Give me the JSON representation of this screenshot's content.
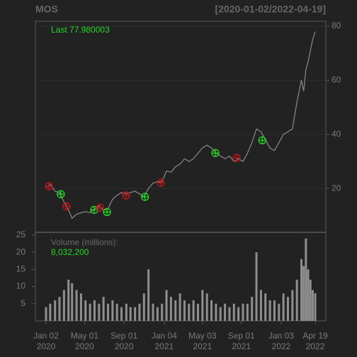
{
  "chart_data": {
    "type": "line",
    "title": "MOS",
    "subtitle": "[2020-01-02/2022-04-19]",
    "last_label": "Last 77.980003",
    "volume_title": "Volume (millions):",
    "volume_last_label": "8,032,200",
    "xlim": [
      "2019-11-30",
      "2022-05-22"
    ],
    "xticks": [
      {
        "value": "2020-01-02",
        "label": "Jan 02\n2020"
      },
      {
        "value": "2020-05-01",
        "label": "May 01\n2020"
      },
      {
        "value": "2020-09-01",
        "label": "Sep 01\n2020"
      },
      {
        "value": "2021-01-04",
        "label": "Jan 04\n2021"
      },
      {
        "value": "2021-05-03",
        "label": "May 03\n2021"
      },
      {
        "value": "2021-09-01",
        "label": "Sep 01\n2021"
      },
      {
        "value": "2022-01-03",
        "label": "Jan 03\n2022"
      },
      {
        "value": "2022-04-19",
        "label": "Apr 19\n2022"
      }
    ],
    "x": [
      "2020-01-02",
      "2020-01-15",
      "2020-01-30",
      "2020-02-13",
      "2020-02-27",
      "2020-03-12",
      "2020-03-23",
      "2020-04-06",
      "2020-04-20",
      "2020-05-04",
      "2020-05-18",
      "2020-06-01",
      "2020-06-15",
      "2020-06-29",
      "2020-07-13",
      "2020-07-27",
      "2020-08-10",
      "2020-08-24",
      "2020-09-08",
      "2020-09-21",
      "2020-10-05",
      "2020-10-19",
      "2020-11-02",
      "2020-11-16",
      "2020-11-30",
      "2020-12-14",
      "2020-12-28",
      "2021-01-11",
      "2021-01-25",
      "2021-02-08",
      "2021-02-22",
      "2021-03-08",
      "2021-03-22",
      "2021-04-05",
      "2021-04-19",
      "2021-05-03",
      "2021-05-17",
      "2021-05-31",
      "2021-06-14",
      "2021-06-28",
      "2021-07-12",
      "2021-07-26",
      "2021-08-09",
      "2021-08-23",
      "2021-09-06",
      "2021-09-20",
      "2021-10-04",
      "2021-10-18",
      "2021-11-01",
      "2021-11-15",
      "2021-11-29",
      "2021-12-13",
      "2021-12-27",
      "2022-01-10",
      "2022-01-24",
      "2022-02-07",
      "2022-02-21",
      "2022-03-07",
      "2022-03-14",
      "2022-03-21",
      "2022-03-28",
      "2022-04-04",
      "2022-04-11",
      "2022-04-19"
    ],
    "price": {
      "color": "#8a8a8a",
      "values": [
        20.5,
        21.5,
        19,
        18.5,
        15,
        12,
        9,
        10.5,
        11,
        11.5,
        11,
        12.5,
        13.5,
        12,
        12.5,
        16,
        17.5,
        18.5,
        18,
        18.5,
        19,
        18,
        17,
        20,
        22,
        22.5,
        22.5,
        26.5,
        26,
        28,
        29,
        31,
        30,
        31,
        33,
        35,
        36,
        35,
        33,
        32,
        31,
        32,
        30,
        31,
        30,
        33,
        37,
        42,
        41,
        38,
        35,
        34,
        37,
        40,
        41,
        42,
        52,
        60,
        56,
        64,
        67,
        71,
        75,
        77.980003
      ]
    },
    "ylim": [
      3.8,
      81.8
    ],
    "yticks": [
      20,
      40,
      60,
      80
    ],
    "grid": true,
    "volume": {
      "color": "#8f8f8f",
      "values": [
        4,
        5,
        6,
        7,
        9,
        12,
        11,
        9,
        8,
        6,
        5,
        6,
        5,
        7,
        5,
        6,
        5,
        4,
        5,
        4,
        4,
        5,
        8,
        15,
        5,
        4,
        5,
        9,
        7,
        6,
        8,
        6,
        5,
        6,
        5,
        9,
        8,
        6,
        5,
        4,
        5,
        4,
        5,
        4,
        5,
        5,
        7,
        20,
        9,
        8,
        6,
        6,
        5,
        8,
        7,
        9,
        12,
        18,
        16,
        24,
        15,
        12,
        9,
        8.0322
      ]
    },
    "vlim": [
      0,
      25.8
    ],
    "vticks": [
      5,
      10,
      15,
      20,
      25
    ],
    "markers": [
      {
        "x": "2020-01-11",
        "y": 20.8,
        "color": "#c0151b"
      },
      {
        "x": "2020-02-17",
        "y": 17.9,
        "color": "#27d827"
      },
      {
        "x": "2020-03-06",
        "y": 13.4,
        "color": "#c0151b"
      },
      {
        "x": "2020-05-31",
        "y": 12.1,
        "color": "#27d827"
      },
      {
        "x": "2020-06-18",
        "y": 12.9,
        "color": "#c0151b"
      },
      {
        "x": "2020-07-10",
        "y": 11.3,
        "color": "#27d827"
      },
      {
        "x": "2020-09-07",
        "y": 17.4,
        "color": "#c0151b"
      },
      {
        "x": "2020-11-05",
        "y": 16.9,
        "color": "#27d827"
      },
      {
        "x": "2020-12-24",
        "y": 22.1,
        "color": "#c0151b"
      },
      {
        "x": "2021-06-12",
        "y": 33.1,
        "color": "#27d827"
      },
      {
        "x": "2021-08-17",
        "y": 31.3,
        "color": "#c0151b"
      },
      {
        "x": "2021-11-05",
        "y": 37.8,
        "color": "#27d827"
      }
    ]
  }
}
